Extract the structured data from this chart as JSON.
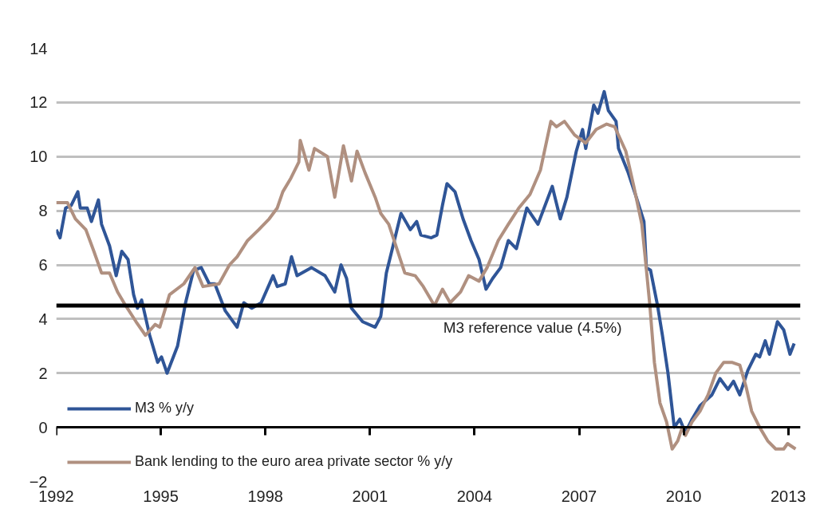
{
  "chart_data": {
    "type": "line",
    "xlim": [
      1992,
      2013.35
    ],
    "ylim": [
      -2,
      14
    ],
    "xticks": [
      1992,
      1995,
      1998,
      2001,
      2004,
      2007,
      2010,
      2013
    ],
    "yticks": [
      -2,
      0,
      2,
      4,
      6,
      8,
      10,
      12,
      14
    ],
    "grid": "y",
    "legend": "bottom left",
    "line_style": "solid",
    "ref_lines": [
      {
        "axis": "y",
        "value": 4.5,
        "label": "M3 reference value (4.5%)",
        "color": "#000000"
      }
    ],
    "series": [
      {
        "name": "M3 % y/y",
        "color": "#2f5597",
        "x": [
          1992.0,
          1992.11,
          1992.27,
          1992.43,
          1992.62,
          1992.69,
          1992.89,
          1993.01,
          1993.21,
          1993.3,
          1993.53,
          1993.72,
          1993.88,
          1994.06,
          1994.22,
          1994.33,
          1994.45,
          1994.68,
          1994.91,
          1995.02,
          1995.18,
          1995.48,
          1995.71,
          1995.94,
          1996.16,
          1996.39,
          1996.55,
          1996.85,
          1997.19,
          1997.38,
          1997.61,
          1997.88,
          1998.22,
          1998.34,
          1998.57,
          1998.75,
          1998.91,
          1999.32,
          1999.71,
          1999.99,
          2000.17,
          2000.33,
          2000.47,
          2000.79,
          2001.15,
          2001.31,
          2001.47,
          2001.7,
          2001.89,
          2002.16,
          2002.34,
          2002.46,
          2002.76,
          2002.92,
          2003.08,
          2003.21,
          2003.44,
          2003.67,
          2003.9,
          2004.13,
          2004.33,
          2004.52,
          2004.75,
          2004.97,
          2005.2,
          2005.5,
          2005.82,
          2006.23,
          2006.46,
          2006.65,
          2006.92,
          2007.1,
          2007.19,
          2007.42,
          2007.54,
          2007.72,
          2007.84,
          2008.06,
          2008.13,
          2008.41,
          2008.64,
          2008.86,
          2008.93,
          2009.05,
          2009.25,
          2009.39,
          2009.55,
          2009.73,
          2009.89,
          2010.05,
          2010.24,
          2010.47,
          2010.81,
          2011.04,
          2011.27,
          2011.43,
          2011.61,
          2011.84,
          2012.07,
          2012.18,
          2012.34,
          2012.46,
          2012.69,
          2012.87,
          2013.05,
          2013.17
        ],
        "values": [
          7.3,
          7.0,
          8.1,
          8.2,
          8.7,
          8.1,
          8.1,
          7.6,
          8.4,
          7.5,
          6.7,
          5.6,
          6.5,
          6.2,
          4.9,
          4.4,
          4.7,
          3.4,
          2.4,
          2.6,
          2.0,
          3.0,
          4.6,
          5.8,
          5.9,
          5.3,
          5.3,
          4.3,
          3.7,
          4.6,
          4.4,
          4.6,
          5.6,
          5.2,
          5.3,
          6.3,
          5.6,
          5.9,
          5.6,
          5.0,
          6.0,
          5.5,
          4.4,
          3.9,
          3.7,
          4.1,
          5.7,
          6.9,
          7.9,
          7.3,
          7.6,
          7.1,
          7.0,
          7.1,
          8.2,
          9.0,
          8.7,
          7.7,
          6.9,
          6.2,
          5.1,
          5.5,
          5.9,
          6.9,
          6.6,
          8.1,
          7.5,
          8.9,
          7.7,
          8.5,
          10.2,
          11.0,
          10.3,
          11.9,
          11.6,
          12.4,
          11.7,
          11.3,
          10.3,
          9.4,
          8.5,
          7.6,
          5.9,
          5.8,
          4.5,
          3.4,
          2.0,
          0.0,
          0.3,
          -0.2,
          0.3,
          0.8,
          1.2,
          1.8,
          1.4,
          1.7,
          1.2,
          2.1,
          2.7,
          2.6,
          3.2,
          2.7,
          3.9,
          3.6,
          2.7,
          3.1
        ]
      },
      {
        "name": "Bank lending to the euro area private sector % y/y",
        "color": "#b09080",
        "x": [
          1992.0,
          1992.32,
          1992.55,
          1992.85,
          1993.08,
          1993.3,
          1993.53,
          1993.76,
          1993.99,
          1994.29,
          1994.56,
          1994.84,
          1994.97,
          1995.25,
          1995.66,
          1995.98,
          1996.21,
          1996.67,
          1996.97,
          1997.19,
          1997.49,
          1997.81,
          1998.11,
          1998.34,
          1998.5,
          1998.73,
          1998.96,
          1999.0,
          1999.25,
          1999.41,
          1999.78,
          1999.99,
          2000.24,
          2000.47,
          2000.63,
          2000.86,
          2001.15,
          2001.31,
          2001.54,
          2001.77,
          2002.0,
          2002.3,
          2002.53,
          2002.85,
          2003.08,
          2003.3,
          2003.6,
          2003.83,
          2004.13,
          2004.36,
          2004.68,
          2004.97,
          2005.27,
          2005.59,
          2005.89,
          2006.19,
          2006.35,
          2006.58,
          2006.87,
          2007.19,
          2007.49,
          2007.79,
          2008.02,
          2008.34,
          2008.57,
          2008.8,
          2008.91,
          2009.03,
          2009.16,
          2009.32,
          2009.51,
          2009.67,
          2009.83,
          2009.96,
          2010.05,
          2010.24,
          2010.47,
          2010.7,
          2010.92,
          2011.15,
          2011.38,
          2011.61,
          2011.79,
          2011.95,
          2012.18,
          2012.41,
          2012.64,
          2012.87,
          2012.98,
          2013.21
        ],
        "values": [
          8.3,
          8.3,
          7.7,
          7.3,
          6.5,
          5.7,
          5.7,
          5.0,
          4.5,
          3.9,
          3.4,
          3.8,
          3.7,
          4.9,
          5.3,
          5.9,
          5.2,
          5.3,
          6.0,
          6.3,
          6.9,
          7.3,
          7.7,
          8.1,
          8.7,
          9.2,
          9.8,
          10.6,
          9.5,
          10.3,
          10.0,
          8.5,
          10.4,
          9.1,
          10.2,
          9.4,
          8.5,
          7.9,
          7.5,
          6.6,
          5.7,
          5.6,
          5.2,
          4.5,
          5.1,
          4.6,
          5.0,
          5.6,
          5.4,
          5.9,
          6.9,
          7.5,
          8.1,
          8.6,
          9.5,
          11.3,
          11.1,
          11.3,
          10.8,
          10.5,
          11.0,
          11.2,
          11.1,
          10.2,
          8.9,
          7.5,
          6.1,
          4.5,
          2.4,
          0.9,
          0.2,
          -0.8,
          -0.5,
          0.0,
          -0.3,
          0.2,
          0.6,
          1.2,
          2.0,
          2.4,
          2.4,
          2.3,
          1.5,
          0.6,
          0.0,
          -0.5,
          -0.8,
          -0.8,
          -0.6,
          -0.8
        ]
      }
    ]
  }
}
